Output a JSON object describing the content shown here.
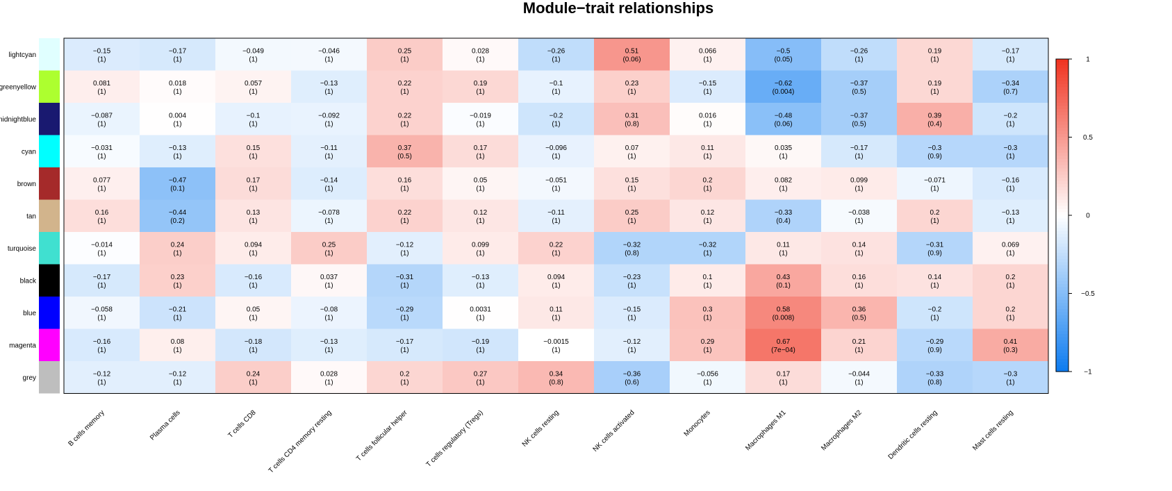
{
  "chart_data": {
    "type": "heatmap",
    "title": "Module−trait relationships",
    "rows": [
      {
        "name": "lightcyan",
        "color": "#E0FFFF"
      },
      {
        "name": "greenyellow",
        "color": "#ADFF2F"
      },
      {
        "name": "midnightblue",
        "color": "#191970"
      },
      {
        "name": "cyan",
        "color": "#00FFFF"
      },
      {
        "name": "brown",
        "color": "#A52A2A"
      },
      {
        "name": "tan",
        "color": "#D2B48C"
      },
      {
        "name": "turquoise",
        "color": "#40E0D0"
      },
      {
        "name": "black",
        "color": "#000000"
      },
      {
        "name": "blue",
        "color": "#0000FF"
      },
      {
        "name": "magenta",
        "color": "#FF00FF"
      },
      {
        "name": "grey",
        "color": "#BEBEBE"
      }
    ],
    "columns": [
      "B cells memory",
      "Plasma cells",
      "T cells CD8",
      "T cells CD4 memory resting",
      "T cells follicular helper",
      "T cells regulatory (Tregs)",
      "NK cells resting",
      "NK cells activated",
      "Monocytes",
      "Macrophages M1",
      "Macrophages M2",
      "Dendritic cells resting",
      "Mast cells resting"
    ],
    "values": [
      [
        -0.15,
        -0.17,
        -0.049,
        -0.046,
        0.25,
        0.028,
        -0.26,
        0.51,
        0.066,
        -0.5,
        -0.26,
        0.19,
        -0.17
      ],
      [
        0.081,
        0.018,
        0.057,
        -0.13,
        0.22,
        0.19,
        -0.1,
        0.23,
        -0.15,
        -0.62,
        -0.37,
        0.19,
        -0.34
      ],
      [
        -0.087,
        0.004,
        -0.1,
        -0.092,
        0.22,
        -0.019,
        -0.2,
        0.31,
        0.016,
        -0.48,
        -0.37,
        0.39,
        -0.2
      ],
      [
        -0.031,
        -0.13,
        0.15,
        -0.11,
        0.37,
        0.17,
        -0.096,
        0.07,
        0.11,
        0.035,
        -0.17,
        -0.3,
        -0.3
      ],
      [
        0.077,
        -0.47,
        0.17,
        -0.14,
        0.16,
        0.05,
        -0.051,
        0.15,
        0.2,
        0.082,
        0.099,
        -0.071,
        -0.16
      ],
      [
        0.16,
        -0.44,
        0.13,
        -0.078,
        0.22,
        0.12,
        -0.11,
        0.25,
        0.12,
        -0.33,
        -0.038,
        0.2,
        -0.13
      ],
      [
        -0.014,
        0.24,
        0.094,
        0.25,
        -0.12,
        0.099,
        0.22,
        -0.32,
        -0.32,
        0.11,
        0.14,
        -0.31,
        0.069
      ],
      [
        -0.17,
        0.23,
        -0.16,
        0.037,
        -0.31,
        -0.13,
        0.094,
        -0.23,
        0.1,
        0.43,
        0.16,
        0.14,
        0.2
      ],
      [
        -0.058,
        -0.21,
        0.05,
        -0.08,
        -0.29,
        0.0031,
        0.11,
        -0.15,
        0.3,
        0.58,
        0.36,
        -0.2,
        0.2
      ],
      [
        -0.16,
        0.08,
        -0.18,
        -0.13,
        -0.17,
        -0.19,
        -0.0015,
        -0.12,
        0.29,
        0.67,
        0.21,
        -0.29,
        0.41
      ],
      [
        -0.12,
        -0.12,
        0.24,
        0.028,
        0.2,
        0.27,
        0.34,
        -0.36,
        -0.056,
        0.17,
        -0.044,
        -0.33,
        -0.3
      ]
    ],
    "pvalues": [
      [
        "(1)",
        "(1)",
        "(1)",
        "(1)",
        "(1)",
        "(1)",
        "(1)",
        "(0.06)",
        "(1)",
        "(0.05)",
        "(1)",
        "(1)",
        "(1)"
      ],
      [
        "(1)",
        "(1)",
        "(1)",
        "(1)",
        "(1)",
        "(1)",
        "(1)",
        "(1)",
        "(1)",
        "(0.004)",
        "(0.5)",
        "(1)",
        "(0.7)"
      ],
      [
        "(1)",
        "(1)",
        "(1)",
        "(1)",
        "(1)",
        "(1)",
        "(1)",
        "(0.8)",
        "(1)",
        "(0.06)",
        "(0.5)",
        "(0.4)",
        "(1)"
      ],
      [
        "(1)",
        "(1)",
        "(1)",
        "(1)",
        "(0.5)",
        "(1)",
        "(1)",
        "(1)",
        "(1)",
        "(1)",
        "(1)",
        "(0.9)",
        "(1)"
      ],
      [
        "(1)",
        "(0.1)",
        "(1)",
        "(1)",
        "(1)",
        "(1)",
        "(1)",
        "(1)",
        "(1)",
        "(1)",
        "(1)",
        "(1)",
        "(1)"
      ],
      [
        "(1)",
        "(0.2)",
        "(1)",
        "(1)",
        "(1)",
        "(1)",
        "(1)",
        "(1)",
        "(1)",
        "(0.4)",
        "(1)",
        "(1)",
        "(1)"
      ],
      [
        "(1)",
        "(1)",
        "(1)",
        "(1)",
        "(1)",
        "(1)",
        "(1)",
        "(0.8)",
        "(1)",
        "(1)",
        "(1)",
        "(0.9)",
        "(1)"
      ],
      [
        "(1)",
        "(1)",
        "(1)",
        "(1)",
        "(1)",
        "(1)",
        "(1)",
        "(1)",
        "(1)",
        "(0.1)",
        "(1)",
        "(1)",
        "(1)"
      ],
      [
        "(1)",
        "(1)",
        "(1)",
        "(1)",
        "(1)",
        "(1)",
        "(1)",
        "(1)",
        "(1)",
        "(0.008)",
        "(0.5)",
        "(1)",
        "(1)"
      ],
      [
        "(1)",
        "(1)",
        "(1)",
        "(1)",
        "(1)",
        "(1)",
        "(1)",
        "(1)",
        "(1)",
        "(7e−04)",
        "(1)",
        "(0.9)",
        "(0.3)"
      ],
      [
        "(1)",
        "(1)",
        "(1)",
        "(1)",
        "(1)",
        "(1)",
        "(0.8)",
        "(0.6)",
        "(1)",
        "(1)",
        "(1)",
        "(0.8)",
        "(1)"
      ]
    ],
    "colorscale": {
      "min": -1,
      "max": 1,
      "low_color": "#0C7BF0",
      "mid_color": "#FFFFFF",
      "high_color": "#F0321F",
      "ticks": [
        1,
        0.5,
        0,
        -0.5,
        -1
      ],
      "tick_labels": [
        "1",
        "0.5",
        "0",
        "−0.5",
        "−1"
      ]
    }
  }
}
